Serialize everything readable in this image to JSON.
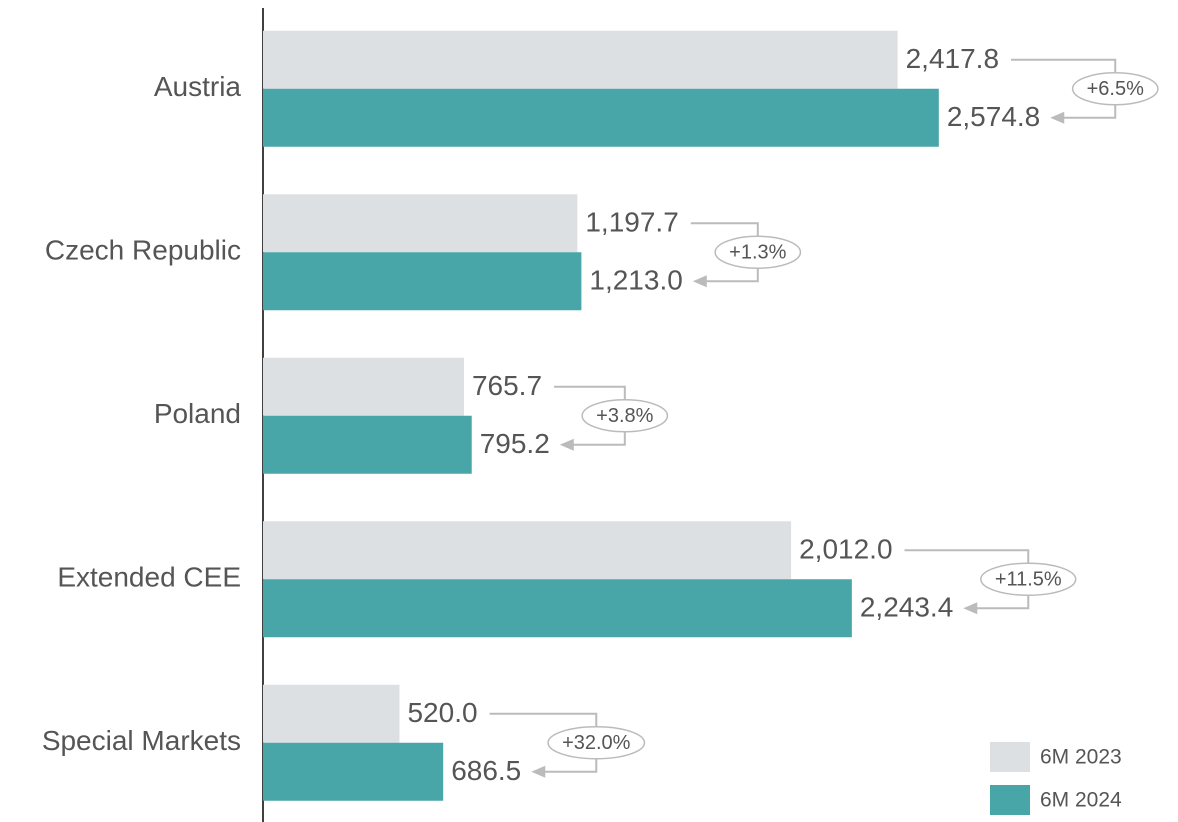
{
  "chart_data": {
    "type": "bar",
    "orientation": "horizontal",
    "categories": [
      "Austria",
      "Czech Republic",
      "Poland",
      "Extended CEE",
      "Special Markets"
    ],
    "series": [
      {
        "name": "6M 2023",
        "color": "#dde0e3",
        "values": [
          2417.8,
          1197.7,
          765.7,
          2012.0,
          520.0
        ],
        "value_labels": [
          "2,417.8",
          "1,197.7",
          "765.7",
          "2,012.0",
          "520.0"
        ]
      },
      {
        "name": "6M 2024",
        "color": "#48a6a9",
        "values": [
          2574.8,
          1213.0,
          795.2,
          2243.4,
          686.5
        ],
        "value_labels": [
          "2,574.8",
          "1,213.0",
          "795.2",
          "2,243.4",
          "686.5"
        ]
      }
    ],
    "annotations": [
      "+6.5%",
      "+1.3%",
      "+3.8%",
      "+11.5%",
      "+32.0%"
    ],
    "xlim": [
      0,
      3486
    ],
    "legend": "bottom-right"
  }
}
